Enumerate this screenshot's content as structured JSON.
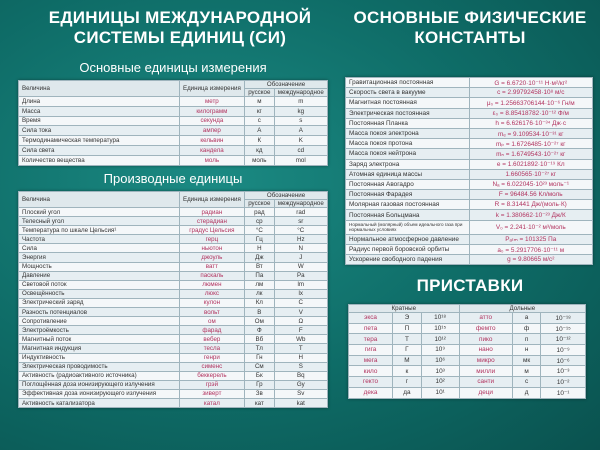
{
  "titles": {
    "left": [
      "ЕДИНИЦЫ МЕЖДУНАРОДНОЙ",
      "СИСТЕМЫ ЕДИНИЦ (СИ)"
    ],
    "right": [
      "ОСНОВНЫЕ ФИЗИЧЕСКИЕ",
      "КОНСТАНТЫ"
    ],
    "prefixes": "ПРИСТАВКИ"
  },
  "colors": {
    "background": "#0e6b66",
    "unit_text": "#b2335f"
  },
  "headers": {
    "quantity": "Величина",
    "unit": "Единица измерения",
    "designation": "Обозначение",
    "russian": "русское",
    "international": "международное"
  },
  "base": {
    "title": "Основные единицы измерения",
    "rows": [
      [
        "Длина",
        "метр",
        "м",
        "m"
      ],
      [
        "Масса",
        "килограмм",
        "кг",
        "kg"
      ],
      [
        "Время",
        "секунда",
        "с",
        "s"
      ],
      [
        "Сила тока",
        "ампер",
        "А",
        "A"
      ],
      [
        "Термодинамическая температура",
        "кельвин",
        "К",
        "K"
      ],
      [
        "Сила света",
        "кандела",
        "кд",
        "cd"
      ],
      [
        "Количество вещества",
        "моль",
        "моль",
        "mol"
      ]
    ]
  },
  "derived": {
    "title": "Производные единицы",
    "rows": [
      [
        "Плоский угол",
        "радиан",
        "рад",
        "rad"
      ],
      [
        "Телесный угол",
        "стерадиан",
        "ср",
        "sr"
      ],
      [
        "Температура по шкале Цельсия¹",
        "градус Цельсия",
        "°C",
        "°C"
      ],
      [
        "Частота",
        "герц",
        "Гц",
        "Hz"
      ],
      [
        "Сила",
        "ньютон",
        "Н",
        "N"
      ],
      [
        "Энергия",
        "джоуль",
        "Дж",
        "J"
      ],
      [
        "Мощность",
        "ватт",
        "Вт",
        "W"
      ],
      [
        "Давление",
        "паскаль",
        "Па",
        "Pa"
      ],
      [
        "Световой поток",
        "люмен",
        "лм",
        "lm"
      ],
      [
        "Освещённость",
        "люкс",
        "лк",
        "lx"
      ],
      [
        "Электрический заряд",
        "кулон",
        "Кл",
        "C"
      ],
      [
        "Разность потенциалов",
        "вольт",
        "В",
        "V"
      ],
      [
        "Сопротивление",
        "ом",
        "Ом",
        "Ω"
      ],
      [
        "Электроёмкость",
        "фарад",
        "Ф",
        "F"
      ],
      [
        "Магнитный поток",
        "вебер",
        "Вб",
        "Wb"
      ],
      [
        "Магнитная индукция",
        "тесла",
        "Тл",
        "T"
      ],
      [
        "Индуктивность",
        "генри",
        "Гн",
        "H"
      ],
      [
        "Электрическая проводимость",
        "сименс",
        "См",
        "S"
      ],
      [
        "Активность (радиоактивного источника)",
        "беккерель",
        "Бк",
        "Bq"
      ],
      [
        "Поглощённая доза ионизирующего излучения",
        "грэй",
        "Гр",
        "Gy"
      ],
      [
        "Эффективная доза ионизирующего излучения",
        "зиверт",
        "Зв",
        "Sv"
      ],
      [
        "Активность катализатора",
        "катал",
        "кат",
        "kat"
      ]
    ]
  },
  "constants": [
    [
      "Гравитационная постоянная",
      "G = 6.6720·10⁻¹¹ Н·м²/кг²"
    ],
    [
      "Скорость света в вакууме",
      "c = 2.99792458·10⁸ м/с"
    ],
    [
      "Магнитная постоянная",
      "μ₀ = 1.25663706144·10⁻⁶ Гн/м"
    ],
    [
      "Электрическая постоянная",
      "ε₀ = 8.85418782·10⁻¹² Ф/м"
    ],
    [
      "Постоянная Планка",
      "h = 6.626176·10⁻³⁴ Дж·с"
    ],
    [
      "Масса покоя электрона",
      "mₑ = 9.109534·10⁻³¹ кг"
    ],
    [
      "Масса покоя протона",
      "mₚ = 1.6726485·10⁻²⁷ кг"
    ],
    [
      "Масса покоя нейтрона",
      "mₙ = 1.6749543·10⁻²⁷ кг"
    ],
    [
      "Заряд электрона",
      "e = 1.6021892·10⁻¹⁹ Кл"
    ],
    [
      "Атомная единица массы",
      "1.660565·10⁻²⁷ кг"
    ],
    [
      "Постоянная Авогадро",
      "Nₐ = 6.022045·10²³ моль⁻¹"
    ],
    [
      "Постоянная Фарадея",
      "F = 96484.56 Кл/моль"
    ],
    [
      "Молярная газовая постоянная",
      "R = 8.31441 Дж/(моль·К)"
    ],
    [
      "Постоянная Больцмана",
      "k = 1.380662·10⁻²³ Дж/К"
    ],
    [
      "Нормальный (молярный) объем идеального газа при нормальных условиях",
      "V₀ = 2.241·10⁻² м³/моль"
    ],
    [
      "Нормальное атмосферное давление",
      "Pₐₜₘ = 101325 Па"
    ],
    [
      "Радиус первой боровской орбиты",
      "a₀ = 5.2917706·10⁻¹¹ м"
    ],
    [
      "Ускорение свободного падения",
      "g = 9.80665 м/с²"
    ]
  ],
  "prefixes": {
    "multiples_label": "Кратные",
    "submultiples_label": "Дольные",
    "rows": [
      [
        "экса",
        "Э",
        "10¹⁸",
        "атто",
        "а",
        "10⁻¹⁸"
      ],
      [
        "пета",
        "П",
        "10¹⁵",
        "фемто",
        "ф",
        "10⁻¹⁵"
      ],
      [
        "тера",
        "Т",
        "10¹²",
        "пико",
        "п",
        "10⁻¹²"
      ],
      [
        "гига",
        "Г",
        "10⁹",
        "нано",
        "н",
        "10⁻⁹"
      ],
      [
        "мега",
        "М",
        "10⁶",
        "микро",
        "мк",
        "10⁻⁶"
      ],
      [
        "кило",
        "к",
        "10³",
        "милли",
        "м",
        "10⁻³"
      ],
      [
        "гекто",
        "г",
        "10²",
        "санти",
        "с",
        "10⁻²"
      ],
      [
        "дека",
        "да",
        "10¹",
        "деци",
        "д",
        "10⁻¹"
      ]
    ]
  }
}
